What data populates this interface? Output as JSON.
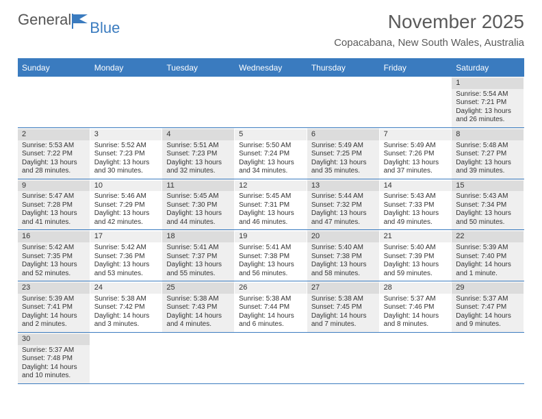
{
  "logo": {
    "part1": "General",
    "part2": "Blue"
  },
  "title": "November 2025",
  "subtitle": "Copacabana, New South Wales, Australia",
  "colors": {
    "accent": "#3a7bbf",
    "header_text": "#5a5a5a",
    "cell_text": "#333333",
    "shaded": "#efefef",
    "daynum_shaded": "#dcdcdc",
    "white": "#ffffff"
  },
  "day_headers": [
    "Sunday",
    "Monday",
    "Tuesday",
    "Wednesday",
    "Thursday",
    "Friday",
    "Saturday"
  ],
  "weeks": [
    [
      {
        "empty": true
      },
      {
        "empty": true
      },
      {
        "empty": true
      },
      {
        "empty": true
      },
      {
        "empty": true
      },
      {
        "empty": true
      },
      {
        "day": "1",
        "sunrise": "Sunrise: 5:54 AM",
        "sunset": "Sunset: 7:21 PM",
        "daylight1": "Daylight: 13 hours",
        "daylight2": "and 26 minutes."
      }
    ],
    [
      {
        "day": "2",
        "sunrise": "Sunrise: 5:53 AM",
        "sunset": "Sunset: 7:22 PM",
        "daylight1": "Daylight: 13 hours",
        "daylight2": "and 28 minutes."
      },
      {
        "day": "3",
        "sunrise": "Sunrise: 5:52 AM",
        "sunset": "Sunset: 7:23 PM",
        "daylight1": "Daylight: 13 hours",
        "daylight2": "and 30 minutes."
      },
      {
        "day": "4",
        "sunrise": "Sunrise: 5:51 AM",
        "sunset": "Sunset: 7:23 PM",
        "daylight1": "Daylight: 13 hours",
        "daylight2": "and 32 minutes."
      },
      {
        "day": "5",
        "sunrise": "Sunrise: 5:50 AM",
        "sunset": "Sunset: 7:24 PM",
        "daylight1": "Daylight: 13 hours",
        "daylight2": "and 34 minutes."
      },
      {
        "day": "6",
        "sunrise": "Sunrise: 5:49 AM",
        "sunset": "Sunset: 7:25 PM",
        "daylight1": "Daylight: 13 hours",
        "daylight2": "and 35 minutes."
      },
      {
        "day": "7",
        "sunrise": "Sunrise: 5:49 AM",
        "sunset": "Sunset: 7:26 PM",
        "daylight1": "Daylight: 13 hours",
        "daylight2": "and 37 minutes."
      },
      {
        "day": "8",
        "sunrise": "Sunrise: 5:48 AM",
        "sunset": "Sunset: 7:27 PM",
        "daylight1": "Daylight: 13 hours",
        "daylight2": "and 39 minutes."
      }
    ],
    [
      {
        "day": "9",
        "sunrise": "Sunrise: 5:47 AM",
        "sunset": "Sunset: 7:28 PM",
        "daylight1": "Daylight: 13 hours",
        "daylight2": "and 41 minutes."
      },
      {
        "day": "10",
        "sunrise": "Sunrise: 5:46 AM",
        "sunset": "Sunset: 7:29 PM",
        "daylight1": "Daylight: 13 hours",
        "daylight2": "and 42 minutes."
      },
      {
        "day": "11",
        "sunrise": "Sunrise: 5:45 AM",
        "sunset": "Sunset: 7:30 PM",
        "daylight1": "Daylight: 13 hours",
        "daylight2": "and 44 minutes."
      },
      {
        "day": "12",
        "sunrise": "Sunrise: 5:45 AM",
        "sunset": "Sunset: 7:31 PM",
        "daylight1": "Daylight: 13 hours",
        "daylight2": "and 46 minutes."
      },
      {
        "day": "13",
        "sunrise": "Sunrise: 5:44 AM",
        "sunset": "Sunset: 7:32 PM",
        "daylight1": "Daylight: 13 hours",
        "daylight2": "and 47 minutes."
      },
      {
        "day": "14",
        "sunrise": "Sunrise: 5:43 AM",
        "sunset": "Sunset: 7:33 PM",
        "daylight1": "Daylight: 13 hours",
        "daylight2": "and 49 minutes."
      },
      {
        "day": "15",
        "sunrise": "Sunrise: 5:43 AM",
        "sunset": "Sunset: 7:34 PM",
        "daylight1": "Daylight: 13 hours",
        "daylight2": "and 50 minutes."
      }
    ],
    [
      {
        "day": "16",
        "sunrise": "Sunrise: 5:42 AM",
        "sunset": "Sunset: 7:35 PM",
        "daylight1": "Daylight: 13 hours",
        "daylight2": "and 52 minutes."
      },
      {
        "day": "17",
        "sunrise": "Sunrise: 5:42 AM",
        "sunset": "Sunset: 7:36 PM",
        "daylight1": "Daylight: 13 hours",
        "daylight2": "and 53 minutes."
      },
      {
        "day": "18",
        "sunrise": "Sunrise: 5:41 AM",
        "sunset": "Sunset: 7:37 PM",
        "daylight1": "Daylight: 13 hours",
        "daylight2": "and 55 minutes."
      },
      {
        "day": "19",
        "sunrise": "Sunrise: 5:41 AM",
        "sunset": "Sunset: 7:38 PM",
        "daylight1": "Daylight: 13 hours",
        "daylight2": "and 56 minutes."
      },
      {
        "day": "20",
        "sunrise": "Sunrise: 5:40 AM",
        "sunset": "Sunset: 7:38 PM",
        "daylight1": "Daylight: 13 hours",
        "daylight2": "and 58 minutes."
      },
      {
        "day": "21",
        "sunrise": "Sunrise: 5:40 AM",
        "sunset": "Sunset: 7:39 PM",
        "daylight1": "Daylight: 13 hours",
        "daylight2": "and 59 minutes."
      },
      {
        "day": "22",
        "sunrise": "Sunrise: 5:39 AM",
        "sunset": "Sunset: 7:40 PM",
        "daylight1": "Daylight: 14 hours",
        "daylight2": "and 1 minute."
      }
    ],
    [
      {
        "day": "23",
        "sunrise": "Sunrise: 5:39 AM",
        "sunset": "Sunset: 7:41 PM",
        "daylight1": "Daylight: 14 hours",
        "daylight2": "and 2 minutes."
      },
      {
        "day": "24",
        "sunrise": "Sunrise: 5:38 AM",
        "sunset": "Sunset: 7:42 PM",
        "daylight1": "Daylight: 14 hours",
        "daylight2": "and 3 minutes."
      },
      {
        "day": "25",
        "sunrise": "Sunrise: 5:38 AM",
        "sunset": "Sunset: 7:43 PM",
        "daylight1": "Daylight: 14 hours",
        "daylight2": "and 4 minutes."
      },
      {
        "day": "26",
        "sunrise": "Sunrise: 5:38 AM",
        "sunset": "Sunset: 7:44 PM",
        "daylight1": "Daylight: 14 hours",
        "daylight2": "and 6 minutes."
      },
      {
        "day": "27",
        "sunrise": "Sunrise: 5:38 AM",
        "sunset": "Sunset: 7:45 PM",
        "daylight1": "Daylight: 14 hours",
        "daylight2": "and 7 minutes."
      },
      {
        "day": "28",
        "sunrise": "Sunrise: 5:37 AM",
        "sunset": "Sunset: 7:46 PM",
        "daylight1": "Daylight: 14 hours",
        "daylight2": "and 8 minutes."
      },
      {
        "day": "29",
        "sunrise": "Sunrise: 5:37 AM",
        "sunset": "Sunset: 7:47 PM",
        "daylight1": "Daylight: 14 hours",
        "daylight2": "and 9 minutes."
      }
    ],
    [
      {
        "day": "30",
        "sunrise": "Sunrise: 5:37 AM",
        "sunset": "Sunset: 7:48 PM",
        "daylight1": "Daylight: 14 hours",
        "daylight2": "and 10 minutes."
      },
      {
        "empty": true
      },
      {
        "empty": true
      },
      {
        "empty": true
      },
      {
        "empty": true
      },
      {
        "empty": true
      },
      {
        "empty": true
      }
    ]
  ]
}
